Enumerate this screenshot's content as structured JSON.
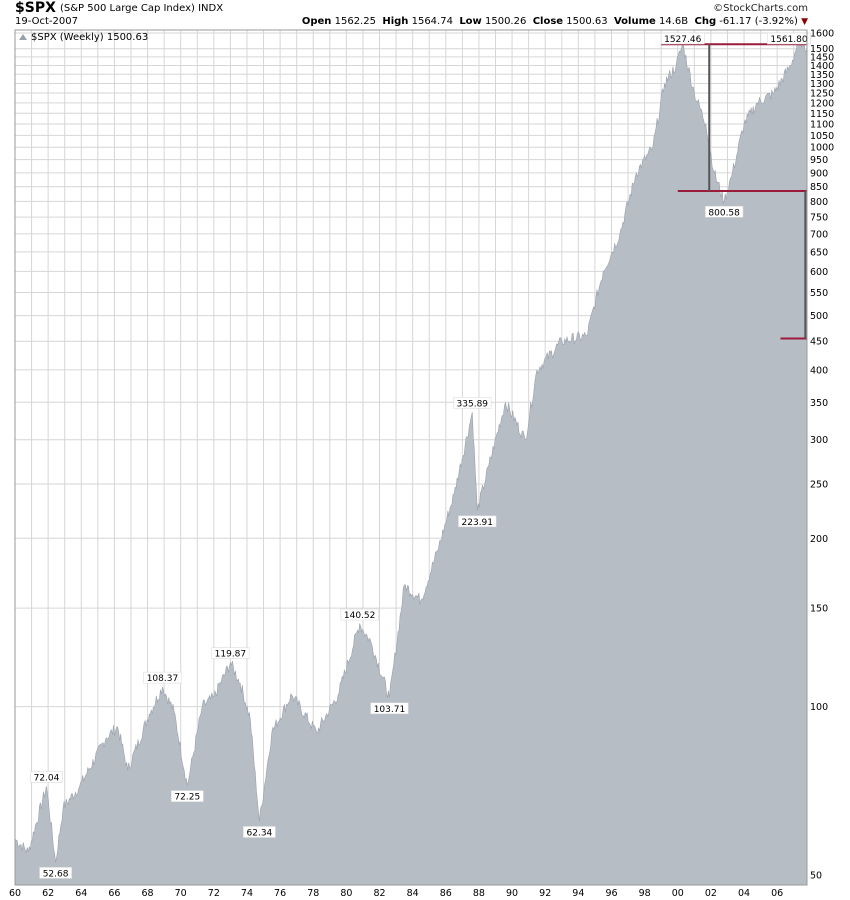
{
  "header": {
    "symbol": "$SPX",
    "description": "(S&P 500 Large Cap Index) INDX",
    "date": "19-Oct-2007",
    "brand": "©StockCharts.com",
    "open_label": "Open",
    "open": "1562.25",
    "high_label": "High",
    "high": "1564.74",
    "low_label": "Low",
    "low": "1500.26",
    "close_label": "Close",
    "close": "1500.63",
    "volume_label": "Volume",
    "volume": "14.6B",
    "chg_label": "Chg",
    "chg": "-61.17 (-3.92%)"
  },
  "colors": {
    "area": "#b7bdc5",
    "area_edge": "#9aa1ab",
    "grid": "#d6d6d6",
    "bars": "#9b1b3a",
    "vline": "#555555"
  },
  "chart_data": {
    "type": "area",
    "title": "$SPX (S&P 500 Large Cap Index) INDX",
    "legend": "$SPX (Weekly) 1500.63",
    "legend_position": "top-left",
    "y_scale": "log",
    "ylim": [
      48,
      1620
    ],
    "xlim": [
      1960,
      2007.8
    ],
    "grid": true,
    "x_ticks": [
      "60",
      "62",
      "64",
      "66",
      "68",
      "70",
      "72",
      "74",
      "76",
      "78",
      "80",
      "82",
      "84",
      "86",
      "88",
      "90",
      "92",
      "94",
      "96",
      "98",
      "00",
      "02",
      "04",
      "06"
    ],
    "y_ticks": [
      50,
      100,
      150,
      200,
      250,
      300,
      350,
      400,
      450,
      500,
      550,
      600,
      650,
      700,
      750,
      800,
      850,
      900,
      950,
      1000,
      1050,
      1100,
      1150,
      1200,
      1250,
      1300,
      1350,
      1400,
      1450,
      1500,
      1600
    ],
    "x": [
      1960.0,
      1960.8,
      1961.9,
      1962.45,
      1962.9,
      1963.9,
      1965.5,
      1966.2,
      1966.8,
      1968.1,
      1968.9,
      1969.6,
      1970.4,
      1971.3,
      1972.0,
      1973.0,
      1973.6,
      1974.2,
      1974.75,
      1975.5,
      1976.7,
      1978.2,
      1979.5,
      1980.8,
      1981.5,
      1982.6,
      1983.5,
      1984.5,
      1985.5,
      1986.5,
      1987.6,
      1987.9,
      1988.6,
      1989.6,
      1990.8,
      1991.5,
      1993.0,
      1994.5,
      1995.5,
      1996.5,
      1997.5,
      1998.5,
      1999.2,
      1999.9,
      2000.3,
      2001.0,
      2001.7,
      2002.2,
      2002.8,
      2003.3,
      2004.0,
      2004.8,
      2005.8,
      2006.8,
      2007.35,
      2007.8
    ],
    "y": [
      58,
      55,
      72.04,
      52.68,
      66,
      72,
      88,
      92,
      77,
      97,
      108.37,
      98,
      72.25,
      100,
      104,
      119.87,
      110,
      95,
      62.34,
      90,
      105,
      90,
      105,
      140.52,
      130,
      103.71,
      165,
      155,
      190,
      240,
      335.89,
      223.91,
      270,
      350,
      300,
      400,
      450,
      460,
      600,
      700,
      900,
      1000,
      1300,
      1400,
      1527.46,
      1250,
      1100,
      900,
      800.58,
      900,
      1100,
      1200,
      1250,
      1400,
      1561.8,
      1500.63
    ],
    "annotations": [
      {
        "text": "72.04",
        "x": 1961.9,
        "y": 72.04
      },
      {
        "text": "52.68",
        "x": 1962.45,
        "y": 52.68
      },
      {
        "text": "108.37",
        "x": 1968.9,
        "y": 108.37
      },
      {
        "text": "72.25",
        "x": 1970.4,
        "y": 72.25
      },
      {
        "text": "119.87",
        "x": 1973.0,
        "y": 119.87
      },
      {
        "text": "62.34",
        "x": 1974.75,
        "y": 62.34
      },
      {
        "text": "140.52",
        "x": 1980.8,
        "y": 140.52
      },
      {
        "text": "103.71",
        "x": 1982.6,
        "y": 103.71
      },
      {
        "text": "335.89",
        "x": 1987.6,
        "y": 335.89
      },
      {
        "text": "223.91",
        "x": 1987.9,
        "y": 223.91
      },
      {
        "text": "1527.46",
        "x": 2000.3,
        "y": 1527.46
      },
      {
        "text": "800.58",
        "x": 2002.8,
        "y": 800.58
      },
      {
        "text": "1561.80",
        "x": 2007.35,
        "y": 1561.8
      }
    ],
    "reference_lines": [
      {
        "y": 1527.46,
        "x0": 1999.0,
        "x1": 2007.8
      },
      {
        "y": 835,
        "x0": 2000.0,
        "x1": 2007.8
      },
      {
        "y": 455,
        "x0": 2006.2,
        "x1": 2007.8
      }
    ],
    "vertical_lines": [
      {
        "x": 2001.9,
        "y0": 835,
        "y1": 1527.46
      },
      {
        "x": 2007.7,
        "y0": 455,
        "y1": 835
      }
    ]
  }
}
